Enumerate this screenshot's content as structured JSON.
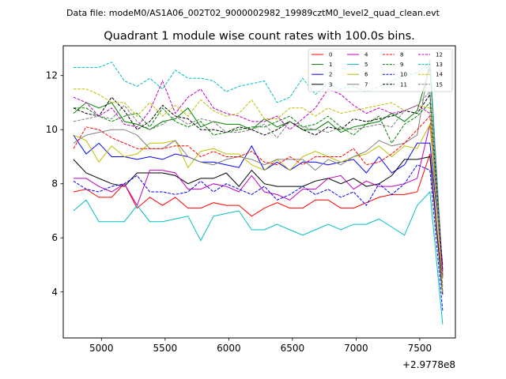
{
  "suptitle": "Data file: modeM0/AS1A06_002T02_9000002982_19989cztM0_level2_quad_clean.evt",
  "chart_data": {
    "type": "line",
    "title": "Quadrant 1 module wise count rates with 100.0s bins.",
    "xlabel": "",
    "ylabel": "",
    "x_offset_label": "+2.9778e8",
    "xlim": [
      4700,
      7780
    ],
    "ylim": [
      2.3,
      13.1
    ],
    "xticks": [
      5000,
      5500,
      6000,
      6500,
      7000,
      7500
    ],
    "yticks": [
      4,
      6,
      8,
      10,
      12
    ],
    "grid": false,
    "legend_position": "top-right",
    "legend_columns": 4,
    "x": [
      4780,
      4880,
      4980,
      5080,
      5180,
      5280,
      5380,
      5480,
      5580,
      5680,
      5780,
      5880,
      5980,
      6080,
      6180,
      6280,
      6380,
      6480,
      6580,
      6680,
      6780,
      6880,
      6980,
      7080,
      7180,
      7280,
      7380,
      7480,
      7580,
      7680
    ],
    "series": [
      {
        "name": "0",
        "color": "#ff0000",
        "dash": "solid",
        "values": [
          7.7,
          7.8,
          7.5,
          7.5,
          8.0,
          7.1,
          7.5,
          7.2,
          7.5,
          7.1,
          7.1,
          7.3,
          7.2,
          7.2,
          6.8,
          7.1,
          7.3,
          7.1,
          7.1,
          7.4,
          7.4,
          7.1,
          7.1,
          7.3,
          7.5,
          7.6,
          7.6,
          7.7,
          9.1,
          4.0
        ]
      },
      {
        "name": "1",
        "color": "#008000",
        "dash": "solid",
        "values": [
          10.6,
          11.0,
          10.8,
          11.0,
          10.3,
          10.2,
          10.0,
          10.3,
          10.4,
          10.8,
          10.1,
          10.3,
          10.2,
          10.2,
          10.0,
          10.4,
          10.1,
          10.3,
          10.0,
          10.0,
          10.3,
          9.9,
          10.1,
          10.2,
          10.3,
          10.6,
          10.3,
          10.7,
          12.3,
          4.5
        ]
      },
      {
        "name": "2",
        "color": "#0000ff",
        "dash": "solid",
        "values": [
          9.8,
          9.1,
          9.5,
          9.0,
          9.0,
          8.9,
          9.0,
          8.9,
          9.1,
          9.0,
          8.8,
          8.8,
          8.7,
          8.6,
          9.4,
          8.5,
          8.8,
          8.5,
          8.8,
          8.8,
          8.7,
          8.8,
          8.9,
          8.4,
          9.0,
          8.4,
          8.7,
          9.5,
          9.5,
          4.8
        ]
      },
      {
        "name": "3",
        "color": "#000000",
        "dash": "solid",
        "values": [
          8.9,
          8.4,
          8.2,
          8.0,
          7.9,
          8.4,
          8.4,
          8.4,
          8.3,
          8.0,
          8.2,
          8.2,
          8.4,
          7.9,
          8.5,
          8.0,
          7.9,
          7.9,
          7.9,
          8.1,
          8.2,
          8.0,
          8.2,
          7.9,
          8.0,
          8.3,
          8.9,
          8.9,
          9.0,
          3.9
        ]
      },
      {
        "name": "4",
        "color": "#bf00bf",
        "dash": "solid",
        "values": [
          8.2,
          8.2,
          7.9,
          7.7,
          8.0,
          7.2,
          8.5,
          8.5,
          8.4,
          7.8,
          7.8,
          8.0,
          7.9,
          7.7,
          8.3,
          7.7,
          7.6,
          7.4,
          7.8,
          7.8,
          8.2,
          8.3,
          7.8,
          8.1,
          7.9,
          7.9,
          8.0,
          8.2,
          10.2,
          5.0
        ]
      },
      {
        "name": "5",
        "color": "#00bfbf",
        "dash": "solid",
        "values": [
          7.0,
          7.4,
          6.6,
          6.6,
          6.6,
          7.2,
          6.6,
          6.6,
          6.7,
          6.8,
          5.9,
          6.8,
          6.9,
          7.0,
          6.3,
          6.3,
          6.5,
          6.3,
          6.1,
          6.3,
          6.5,
          6.3,
          6.5,
          6.5,
          6.7,
          6.4,
          6.1,
          7.2,
          7.7,
          2.8
        ]
      },
      {
        "name": "6",
        "color": "#bfbf00",
        "dash": "solid",
        "values": [
          9.8,
          9.6,
          8.8,
          9.4,
          9.0,
          9.1,
          9.5,
          9.5,
          9.6,
          8.6,
          9.2,
          9.3,
          9.1,
          9.1,
          8.7,
          8.5,
          8.9,
          8.5,
          9.0,
          9.2,
          9.0,
          8.8,
          9.0,
          9.1,
          9.4,
          9.0,
          9.4,
          9.3,
          10.2,
          4.5
        ]
      },
      {
        "name": "7",
        "color": "#808080",
        "dash": "solid",
        "values": [
          9.5,
          9.8,
          9.9,
          10.0,
          10.0,
          9.8,
          9.3,
          9.3,
          9.6,
          9.0,
          8.8,
          8.7,
          8.9,
          9.0,
          8.9,
          8.7,
          8.9,
          8.9,
          8.9,
          8.5,
          8.9,
          8.7,
          9.0,
          9.2,
          9.6,
          9.4,
          9.5,
          9.8,
          12.6,
          4.7
        ]
      },
      {
        "name": "8",
        "color": "#ff0000",
        "dash": "dashed",
        "values": [
          9.3,
          10.1,
          10.0,
          9.7,
          9.5,
          9.3,
          9.3,
          9.3,
          9.4,
          9.4,
          9.0,
          9.2,
          9.0,
          9.0,
          9.2,
          8.8,
          8.7,
          9.0,
          8.7,
          9.0,
          9.0,
          9.0,
          9.3,
          8.7,
          8.8,
          9.1,
          9.5,
          10.0,
          10.5,
          4.7
        ]
      },
      {
        "name": "9",
        "color": "#008000",
        "dash": "dashed",
        "values": [
          10.8,
          10.8,
          10.5,
          10.3,
          10.5,
          10.6,
          10.1,
          10.8,
          10.3,
          10.1,
          10.3,
          9.8,
          9.9,
          10.0,
          10.1,
          10.1,
          10.3,
          10.5,
          10.1,
          10.2,
          10.5,
          10.1,
          9.8,
          10.2,
          10.5,
          9.5,
          10.2,
          10.5,
          11.0,
          4.6
        ]
      },
      {
        "name": "10",
        "color": "#0000ff",
        "dash": "dashed",
        "values": [
          8.1,
          7.8,
          7.7,
          7.9,
          8.0,
          8.3,
          7.7,
          7.7,
          7.6,
          7.7,
          8.1,
          7.7,
          8.0,
          7.8,
          7.6,
          7.9,
          7.4,
          7.6,
          7.9,
          7.6,
          7.8,
          7.5,
          7.7,
          7.2,
          8.0,
          7.6,
          8.0,
          8.7,
          8.5,
          3.3
        ]
      },
      {
        "name": "11",
        "color": "#000000",
        "dash": "dashed",
        "values": [
          10.8,
          10.6,
          10.5,
          11.2,
          10.7,
          10.0,
          10.3,
          10.9,
          10.5,
          10.4,
          10.0,
          10.0,
          9.9,
          10.1,
          10.0,
          9.8,
          10.0,
          10.3,
          10.0,
          9.8,
          10.1,
          10.0,
          10.4,
          10.3,
          10.4,
          10.5,
          10.7,
          10.6,
          11.3,
          4.8
        ]
      },
      {
        "name": "12",
        "color": "#bf00bf",
        "dash": "dashed",
        "values": [
          11.2,
          11.0,
          10.5,
          10.8,
          10.2,
          10.1,
          10.7,
          11.8,
          10.6,
          11.2,
          11.5,
          10.8,
          10.6,
          10.5,
          10.3,
          10.3,
          10.5,
          10.0,
          10.4,
          10.8,
          11.5,
          11.3,
          10.9,
          10.6,
          10.8,
          10.6,
          10.7,
          10.9,
          10.6,
          4.6
        ]
      },
      {
        "name": "13",
        "color": "#00bfbf",
        "dash": "dashed",
        "values": [
          12.3,
          12.3,
          12.3,
          12.5,
          11.8,
          11.6,
          11.9,
          11.5,
          12.2,
          11.9,
          11.9,
          11.8,
          11.4,
          11.6,
          11.7,
          11.8,
          11.0,
          11.2,
          11.9,
          11.3,
          11.7,
          11.5,
          11.6,
          11.4,
          11.6,
          11.8,
          12.0,
          12.1,
          12.5,
          4.0
        ]
      },
      {
        "name": "14",
        "color": "#bfbf00",
        "dash": "dashed",
        "values": [
          11.5,
          11.5,
          11.3,
          11.0,
          11.0,
          10.5,
          11.0,
          10.5,
          10.9,
          10.5,
          11.1,
          10.7,
          10.5,
          10.6,
          11.1,
          10.4,
          10.4,
          10.8,
          10.8,
          10.5,
          10.8,
          10.6,
          10.7,
          10.8,
          10.9,
          11.0,
          10.7,
          10.9,
          10.8,
          4.0
        ]
      },
      {
        "name": "15",
        "color": "#808080",
        "dash": "dashed",
        "values": [
          10.3,
          10.4,
          10.5,
          10.4,
          10.9,
          10.3,
          10.0,
          10.2,
          10.5,
          10.2,
          10.4,
          10.3,
          9.9,
          9.9,
          10.0,
          10.2,
          9.7,
          10.3,
          10.1,
          10.0,
          9.9,
          10.1,
          10.0,
          10.1,
          10.2,
          10.1,
          10.7,
          10.9,
          11.4,
          4.2
        ]
      }
    ]
  }
}
